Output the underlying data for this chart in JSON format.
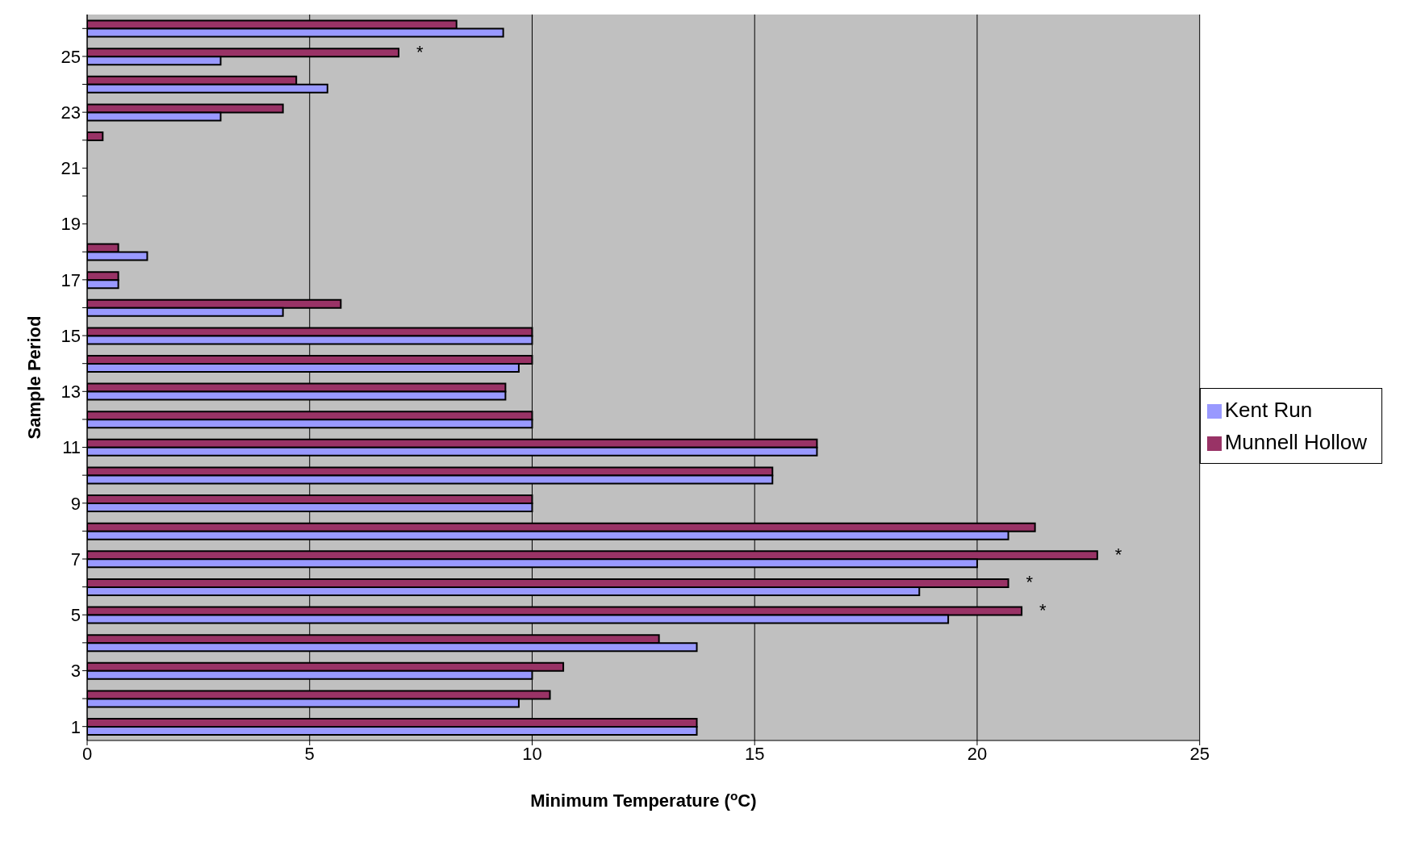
{
  "chart_data": {
    "type": "bar",
    "orientation": "horizontal",
    "xlabel": "Minimum Temperature ($^{o}$C)",
    "ylabel": "Sample Period",
    "categories": [
      null,
      "25",
      null,
      "23",
      null,
      "21",
      null,
      "19",
      null,
      "17",
      null,
      "15",
      null,
      "13",
      null,
      "11",
      null,
      "9",
      null,
      "7",
      null,
      "5",
      null,
      "3",
      null,
      "1"
    ],
    "series": [
      {
        "name": "Munnell Hollow",
        "color": "#993366",
        "values": [
          8.3,
          7.0,
          4.7,
          4.4,
          0.35,
          0,
          0,
          0,
          0.7,
          0.7,
          5.7,
          10.0,
          10.0,
          9.4,
          10.0,
          16.4,
          15.4,
          10.0,
          21.3,
          22.7,
          20.7,
          21.0,
          12.85,
          10.7,
          10.4,
          13.7
        ]
      },
      {
        "name": "Kent Run",
        "color": "#9999ff",
        "values": [
          9.35,
          3.0,
          5.4,
          3.0,
          0,
          0,
          0,
          0,
          1.35,
          0.7,
          4.4,
          10.0,
          9.7,
          9.4,
          10.0,
          16.4,
          15.4,
          10.0,
          20.7,
          20.0,
          18.7,
          19.35,
          13.7,
          10.0,
          9.7,
          13.7
        ]
      }
    ],
    "xlim": [
      0,
      25
    ],
    "xticks": [
      0,
      5,
      10,
      15,
      20,
      25
    ],
    "grid": "x",
    "legend": "right",
    "annotations": [
      {
        "text": "*",
        "x": 7.0,
        "y": "25"
      },
      {
        "text": "*",
        "x": 22.7,
        "y": "7"
      },
      {
        "text": "*",
        "x": 20.7
      },
      {
        "text": "*",
        "x": 21.0,
        "y": "5"
      }
    ]
  }
}
